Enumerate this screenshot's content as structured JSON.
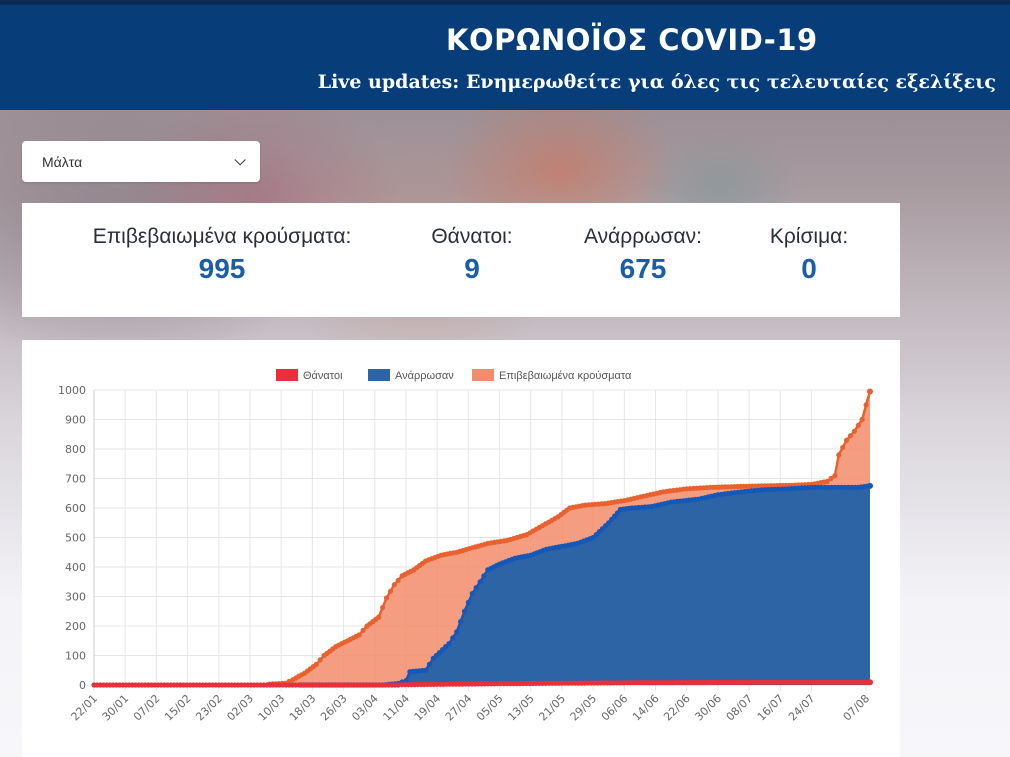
{
  "header": {
    "title": "ΚΟΡΩΝΟΪΟΣ COVID-19",
    "subtitle": "Live updates: Ενημερωθείτε για όλες τις τελευταίες εξελίξεις"
  },
  "country_select": {
    "value": "Μάλτα",
    "icon": "chevron-down-icon"
  },
  "stats": [
    {
      "label": "Επιβεβαιωμένα κρούσματα:",
      "value": "995"
    },
    {
      "label": "Θάνατοι:",
      "value": "9"
    },
    {
      "label": "Ανάρρωσαν:",
      "value": "675"
    },
    {
      "label": "Κρίσιμα:",
      "value": "0"
    }
  ],
  "colors": {
    "header_bg": "#073e7a",
    "stat_value": "#1a5da8",
    "deaths": "#e8303c",
    "recovered": "#2d64a6",
    "recovered_point": "#1458b8",
    "confirmed": "#f28c6a",
    "confirmed_point": "#e8622f"
  },
  "chart_data": {
    "type": "area",
    "title": "",
    "xlabel": "",
    "ylabel": "",
    "ylim": [
      0,
      1000
    ],
    "yticks": [
      "0",
      "100",
      "200",
      "300",
      "400",
      "500",
      "600",
      "700",
      "800",
      "900",
      "1000"
    ],
    "grid": true,
    "legend_position": "top-center",
    "xticks": [
      "22/01",
      "30/01",
      "07/02",
      "15/02",
      "23/02",
      "02/03",
      "10/03",
      "18/03",
      "26/03",
      "03/04",
      "11/04",
      "19/04",
      "27/04",
      "05/05",
      "13/05",
      "21/05",
      "29/05",
      "06/06",
      "14/06",
      "22/06",
      "30/06",
      "08/07",
      "16/07",
      "24/07",
      "07/08"
    ],
    "x_range": [
      "22/01",
      "07/08"
    ],
    "series": [
      {
        "name": "Θάνατοι",
        "points": [
          [
            "22/01",
            0
          ],
          [
            "09/04",
            0
          ],
          [
            "10/04",
            1
          ],
          [
            "02/05",
            4
          ],
          [
            "21/05",
            6
          ],
          [
            "10/06",
            8
          ],
          [
            "08/07",
            9
          ],
          [
            "08/08",
            9
          ]
        ]
      },
      {
        "name": "Ανάρρωσαν",
        "points": [
          [
            "15/03",
            0
          ],
          [
            "05/04",
            0
          ],
          [
            "09/04",
            5
          ],
          [
            "11/04",
            15
          ],
          [
            "12/04",
            45
          ],
          [
            "16/04",
            50
          ],
          [
            "18/04",
            90
          ],
          [
            "22/04",
            140
          ],
          [
            "24/04",
            180
          ],
          [
            "26/04",
            250
          ],
          [
            "28/04",
            310
          ],
          [
            "30/04",
            350
          ],
          [
            "02/05",
            390
          ],
          [
            "05/05",
            410
          ],
          [
            "09/05",
            430
          ],
          [
            "13/05",
            440
          ],
          [
            "17/05",
            460
          ],
          [
            "21/05",
            470
          ],
          [
            "25/05",
            480
          ],
          [
            "29/05",
            500
          ],
          [
            "02/06",
            550
          ],
          [
            "05/06",
            595
          ],
          [
            "08/06",
            600
          ],
          [
            "13/06",
            605
          ],
          [
            "18/06",
            620
          ],
          [
            "25/06",
            630
          ],
          [
            "30/06",
            645
          ],
          [
            "06/07",
            655
          ],
          [
            "12/07",
            662
          ],
          [
            "18/07",
            665
          ],
          [
            "24/07",
            670
          ],
          [
            "30/07",
            670
          ],
          [
            "05/08",
            670
          ],
          [
            "08/08",
            675
          ]
        ]
      },
      {
        "name": "Επιβεβαιωμένα κρούσματα",
        "points": [
          [
            "07/03",
            3
          ],
          [
            "11/03",
            6
          ],
          [
            "13/03",
            18
          ],
          [
            "16/03",
            40
          ],
          [
            "19/03",
            70
          ],
          [
            "21/03",
            100
          ],
          [
            "24/03",
            130
          ],
          [
            "27/03",
            150
          ],
          [
            "30/03",
            170
          ],
          [
            "01/04",
            200
          ],
          [
            "04/04",
            230
          ],
          [
            "06/04",
            295
          ],
          [
            "08/04",
            340
          ],
          [
            "10/04",
            370
          ],
          [
            "13/04",
            390
          ],
          [
            "16/04",
            420
          ],
          [
            "20/04",
            440
          ],
          [
            "24/04",
            450
          ],
          [
            "28/04",
            465
          ],
          [
            "02/05",
            480
          ],
          [
            "07/05",
            490
          ],
          [
            "12/05",
            510
          ],
          [
            "16/05",
            540
          ],
          [
            "20/05",
            570
          ],
          [
            "23/05",
            600
          ],
          [
            "27/05",
            610
          ],
          [
            "01/06",
            615
          ],
          [
            "06/06",
            625
          ],
          [
            "11/06",
            640
          ],
          [
            "16/06",
            655
          ],
          [
            "22/06",
            665
          ],
          [
            "28/06",
            670
          ],
          [
            "05/07",
            673
          ],
          [
            "12/07",
            675
          ],
          [
            "19/07",
            677
          ],
          [
            "24/07",
            680
          ],
          [
            "28/07",
            690
          ],
          [
            "30/07",
            710
          ],
          [
            "31/07",
            780
          ],
          [
            "02/08",
            830
          ],
          [
            "04/08",
            860
          ],
          [
            "06/08",
            900
          ],
          [
            "07/08",
            950
          ],
          [
            "08/08",
            995
          ]
        ]
      }
    ]
  }
}
